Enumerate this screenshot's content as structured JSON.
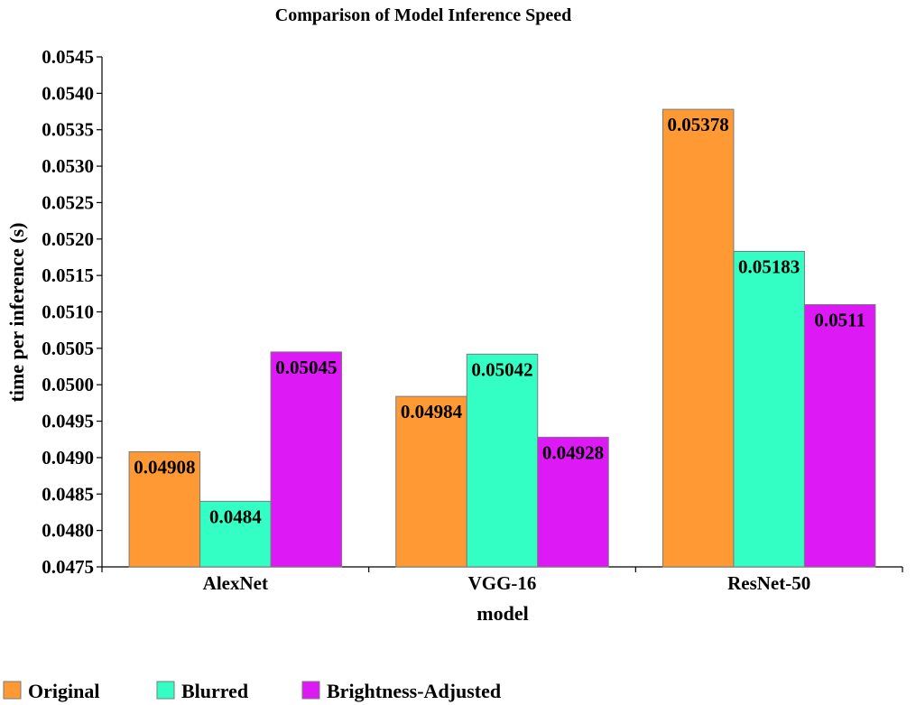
{
  "chart_data": {
    "type": "bar",
    "title": "Comparison of Model Inference Speed",
    "xlabel": "model",
    "ylabel": "time per inference (s)",
    "categories": [
      "AlexNet",
      "VGG-16",
      "ResNet-50"
    ],
    "series": [
      {
        "name": "Original",
        "color": "#ff9933",
        "values": [
          0.04908,
          0.04984,
          0.05378
        ],
        "labels": [
          "0.04908",
          "0.04984",
          "0.05378"
        ]
      },
      {
        "name": "Blurred",
        "color": "#33ffc4",
        "values": [
          0.0484,
          0.05042,
          0.05183
        ],
        "labels": [
          "0.0484",
          "0.05042",
          "0.05183"
        ]
      },
      {
        "name": "Brightness-Adjusted",
        "color": "#dd1af5",
        "values": [
          0.05045,
          0.04928,
          0.0511
        ],
        "labels": [
          "0.05045",
          "0.04928",
          "0.0511"
        ]
      }
    ],
    "ylim": [
      0.0475,
      0.0545
    ],
    "yticks": [
      0.0475,
      0.048,
      0.0485,
      0.049,
      0.0495,
      0.05,
      0.0505,
      0.051,
      0.0515,
      0.052,
      0.0525,
      0.053,
      0.0535,
      0.054,
      0.0545
    ],
    "ytick_labels": [
      "0.0475",
      "0.0480",
      "0.0485",
      "0.0490",
      "0.0495",
      "0.0500",
      "0.0505",
      "0.0510",
      "0.0515",
      "0.0520",
      "0.0525",
      "0.0530",
      "0.0535",
      "0.0540",
      "0.0545"
    ],
    "grid": false,
    "legend_position": "bottom"
  }
}
